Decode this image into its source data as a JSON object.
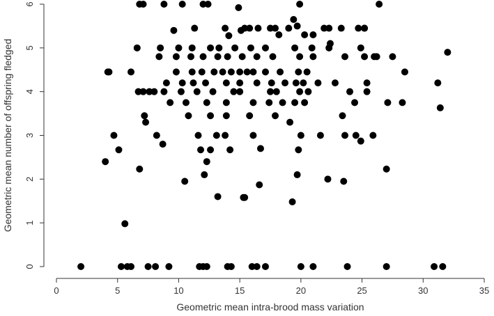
{
  "chart_data": {
    "type": "scatter",
    "title": "",
    "xlabel": "Geometric mean intra-brood mass variation",
    "ylabel": "Geometric mean number of offspring fledged",
    "xlim": [
      0,
      35
    ],
    "ylim": [
      0,
      6
    ],
    "xticks": [
      "0",
      "5",
      "10",
      "15",
      "20",
      "25",
      "30",
      "35"
    ],
    "yticks": [
      "0",
      "1",
      "2",
      "3",
      "4",
      "5",
      "6"
    ],
    "grid": false,
    "legend": "none",
    "point_color": "#000000",
    "series": [
      {
        "x": [
          6.8,
          7.1,
          8.8,
          10.3,
          12.0,
          12.4,
          14.9,
          19.9,
          26.4,
          19.4,
          17.9,
          15.4,
          22.3,
          11.3,
          13.8,
          15.8,
          16.5,
          17.5,
          19.0,
          21.0,
          21.9,
          23.3,
          24.7,
          25.2,
          14.1,
          19.7,
          9.6,
          15.1,
          18.2,
          20.3,
          22.4,
          25.2,
          8.5,
          10.0,
          11.1,
          12.6,
          13.3,
          14.6,
          15.9,
          17.1,
          19.5,
          20.9,
          22.3,
          24.9,
          6.6,
          8.4,
          9.8,
          11.0,
          12.0,
          13.2,
          14.0,
          15.2,
          16.4,
          17.7,
          19.9,
          21.0,
          23.6,
          25.2,
          26.0,
          26.2,
          27.5,
          32.0,
          4.3,
          6.1,
          9.8,
          11.1,
          11.9,
          12.9,
          13.6,
          14.3,
          15.0,
          15.6,
          16.1,
          17.1,
          18.3,
          19.8,
          20.5,
          28.5,
          31.2,
          9.0,
          10.3,
          11.2,
          12.2,
          13.9,
          15.0,
          16.4,
          17.6,
          18.7,
          19.6,
          20.2,
          21.4,
          22.8,
          25.4,
          6.7,
          7.1,
          7.6,
          8.0,
          8.8,
          10.2,
          11.5,
          12.8,
          14.5,
          15.0,
          17.5,
          18.0,
          19.9,
          20.6,
          24.0,
          25.4,
          9.3,
          10.6,
          12.3,
          13.9,
          16.1,
          17.4,
          18.5,
          19.5,
          20.3,
          24.4,
          27.1,
          28.3,
          31.4,
          7.2,
          7.3,
          10.8,
          12.6,
          13.9,
          15.8,
          17.9,
          19.1,
          23.4,
          4.7,
          8.2,
          11.6,
          13.1,
          13.8,
          16.1,
          20.0,
          21.6,
          23.6,
          24.5,
          24.9,
          25.9,
          4.0,
          5.1,
          8.7,
          11.8,
          12.6,
          14.2,
          16.7,
          19.8,
          4.2,
          6.8,
          10.5,
          12.1,
          12.3,
          15.4,
          16.6,
          19.7,
          22.2,
          23.5,
          27.0,
          13.2,
          15.3,
          19.3,
          5.6,
          2.0,
          5.3,
          5.8,
          6.1,
          7.5,
          8.1,
          9.2,
          11.7,
          12.0,
          12.3,
          14.0,
          14.3,
          16.0,
          16.4,
          17.1,
          20.0,
          21.0,
          23.8,
          27.0,
          30.9,
          31.6
        ],
        "y": [
          6.0,
          6.0,
          6.0,
          6.0,
          6.0,
          6.0,
          5.92,
          6.0,
          6.0,
          5.65,
          5.45,
          5.45,
          5.45,
          5.45,
          5.45,
          5.45,
          5.45,
          5.45,
          5.45,
          5.3,
          5.45,
          5.45,
          5.45,
          5.45,
          5.28,
          5.5,
          5.4,
          5.4,
          5.3,
          5.3,
          5.1,
          5.45,
          5.0,
          5.0,
          5.0,
          5.0,
          5.0,
          5.0,
          5.0,
          5.0,
          5.0,
          5.0,
          5.0,
          5.0,
          5.0,
          4.8,
          4.8,
          4.8,
          4.8,
          4.8,
          4.8,
          4.8,
          4.8,
          4.8,
          4.8,
          4.8,
          4.8,
          4.8,
          4.8,
          4.8,
          4.8,
          4.9,
          4.45,
          4.45,
          4.45,
          4.45,
          4.45,
          4.45,
          4.45,
          4.45,
          4.45,
          4.45,
          4.45,
          4.45,
          4.45,
          4.45,
          4.45,
          4.45,
          4.2,
          4.2,
          4.2,
          4.2,
          4.2,
          4.2,
          4.2,
          4.2,
          4.2,
          4.2,
          4.2,
          4.2,
          4.2,
          4.2,
          4.2,
          4.0,
          4.0,
          4.0,
          4.0,
          4.0,
          4.0,
          4.0,
          4.0,
          4.0,
          4.0,
          4.0,
          4.0,
          4.0,
          4.0,
          4.0,
          4.0,
          3.75,
          3.75,
          3.75,
          3.75,
          3.75,
          3.75,
          3.75,
          3.75,
          3.75,
          3.75,
          3.75,
          3.75,
          3.63,
          3.45,
          3.3,
          3.45,
          3.45,
          3.45,
          3.45,
          3.45,
          3.3,
          3.45,
          3.0,
          3.0,
          3.0,
          3.0,
          3.0,
          3.0,
          3.0,
          3.0,
          3.0,
          3.0,
          2.87,
          3.0,
          2.4,
          2.67,
          2.8,
          2.67,
          2.67,
          2.67,
          2.7,
          2.67,
          4.45,
          2.23,
          1.95,
          2.1,
          2.4,
          1.58,
          1.87,
          2.1,
          2.0,
          1.95,
          2.23,
          1.6,
          1.58,
          1.48,
          0.98,
          0,
          0,
          0,
          0,
          0,
          0,
          0,
          0,
          0,
          0,
          0,
          0,
          0,
          0,
          0,
          0,
          0,
          0,
          0,
          0,
          0
        ]
      }
    ]
  }
}
